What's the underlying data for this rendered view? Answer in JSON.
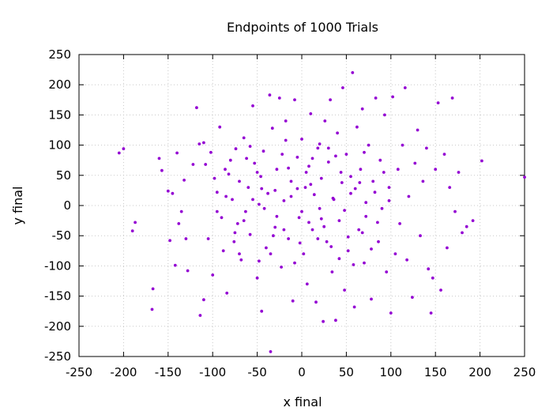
{
  "chart_data": {
    "type": "scatter",
    "title": "Endpoints of 1000 Trials",
    "xlabel": "x final",
    "ylabel": "y final",
    "xlim": [
      -250,
      250
    ],
    "ylim": [
      -250,
      250
    ],
    "xticks": [
      -250,
      -200,
      -150,
      -100,
      -50,
      0,
      50,
      100,
      150,
      200,
      250
    ],
    "yticks": [
      -250,
      -200,
      -150,
      -100,
      -50,
      0,
      50,
      100,
      150,
      200,
      250
    ],
    "grid": true,
    "point_color": "#9400D3",
    "series": [
      {
        "name": "endpoints",
        "points": [
          [
            -205,
            87
          ],
          [
            -200,
            94
          ],
          [
            -190,
            -42
          ],
          [
            -187,
            -28
          ],
          [
            -168,
            -172
          ],
          [
            -167,
            -138
          ],
          [
            -160,
            78
          ],
          [
            -157,
            58
          ],
          [
            -150,
            24
          ],
          [
            -148,
            -58
          ],
          [
            -145,
            20
          ],
          [
            -142,
            -99
          ],
          [
            -140,
            87
          ],
          [
            -138,
            -30
          ],
          [
            -135,
            -10
          ],
          [
            -132,
            42
          ],
          [
            -130,
            -55
          ],
          [
            -128,
            -108
          ],
          [
            -122,
            68
          ],
          [
            -118,
            162
          ],
          [
            -115,
            102
          ],
          [
            -114,
            -182
          ],
          [
            -110,
            104
          ],
          [
            -110,
            -156
          ],
          [
            -108,
            68
          ],
          [
            -105,
            -55
          ],
          [
            -102,
            88
          ],
          [
            -100,
            -115
          ],
          [
            -98,
            45
          ],
          [
            -95,
            22
          ],
          [
            -92,
            130
          ],
          [
            -90,
            -20
          ],
          [
            -88,
            -75
          ],
          [
            -86,
            60
          ],
          [
            -84,
            -145
          ],
          [
            -80,
            75
          ],
          [
            -78,
            10
          ],
          [
            -76,
            -60
          ],
          [
            -74,
            94
          ],
          [
            -72,
            -30
          ],
          [
            -70,
            40
          ],
          [
            -68,
            -90
          ],
          [
            -65,
            112
          ],
          [
            -63,
            -10
          ],
          [
            -60,
            30
          ],
          [
            -58,
            -48
          ],
          [
            -55,
            165
          ],
          [
            -53,
            70
          ],
          [
            -50,
            -120
          ],
          [
            -48,
            2
          ],
          [
            -46,
            48
          ],
          [
            -45,
            -175
          ],
          [
            -43,
            90
          ],
          [
            -40,
            -70
          ],
          [
            -38,
            20
          ],
          [
            -36,
            183
          ],
          [
            -35,
            -242
          ],
          [
            -33,
            128
          ],
          [
            -30,
            -36
          ],
          [
            -28,
            60
          ],
          [
            -25,
            178
          ],
          [
            -23,
            -102
          ],
          [
            -20,
            8
          ],
          [
            -18,
            140
          ],
          [
            -15,
            -55
          ],
          [
            -12,
            40
          ],
          [
            -10,
            -158
          ],
          [
            -8,
            175
          ],
          [
            -5,
            80
          ],
          [
            -3,
            -20
          ],
          [
            0,
            110
          ],
          [
            2,
            -80
          ],
          [
            4,
            30
          ],
          [
            6,
            -130
          ],
          [
            8,
            65
          ],
          [
            10,
            152
          ],
          [
            12,
            -40
          ],
          [
            14,
            18
          ],
          [
            16,
            -160
          ],
          [
            18,
            95
          ],
          [
            20,
            -5
          ],
          [
            22,
            45
          ],
          [
            24,
            -192
          ],
          [
            26,
            140
          ],
          [
            28,
            -60
          ],
          [
            30,
            72
          ],
          [
            32,
            175
          ],
          [
            34,
            -110
          ],
          [
            36,
            10
          ],
          [
            38,
            -190
          ],
          [
            40,
            120
          ],
          [
            42,
            -25
          ],
          [
            44,
            55
          ],
          [
            46,
            195
          ],
          [
            48,
            -140
          ],
          [
            50,
            85
          ],
          [
            52,
            -75
          ],
          [
            55,
            20
          ],
          [
            57,
            220
          ],
          [
            59,
            -168
          ],
          [
            62,
            130
          ],
          [
            64,
            -40
          ],
          [
            66,
            60
          ],
          [
            68,
            160
          ],
          [
            70,
            -95
          ],
          [
            72,
            5
          ],
          [
            75,
            100
          ],
          [
            78,
            -155
          ],
          [
            80,
            40
          ],
          [
            83,
            178
          ],
          [
            86,
            -60
          ],
          [
            88,
            75
          ],
          [
            90,
            -5
          ],
          [
            93,
            150
          ],
          [
            95,
            -110
          ],
          [
            98,
            30
          ],
          [
            100,
            -178
          ],
          [
            102,
            180
          ],
          [
            105,
            -80
          ],
          [
            108,
            60
          ],
          [
            110,
            -30
          ],
          [
            113,
            100
          ],
          [
            116,
            195
          ],
          [
            118,
            -90
          ],
          [
            120,
            15
          ],
          [
            124,
            -152
          ],
          [
            127,
            70
          ],
          [
            130,
            125
          ],
          [
            133,
            -50
          ],
          [
            136,
            40
          ],
          [
            140,
            95
          ],
          [
            142,
            -105
          ],
          [
            145,
            -178
          ],
          [
            147,
            -120
          ],
          [
            150,
            60
          ],
          [
            153,
            170
          ],
          [
            156,
            -140
          ],
          [
            160,
            85
          ],
          [
            163,
            -70
          ],
          [
            166,
            30
          ],
          [
            169,
            178
          ],
          [
            172,
            -10
          ],
          [
            176,
            55
          ],
          [
            180,
            -45
          ],
          [
            185,
            -35
          ],
          [
            192,
            -25
          ],
          [
            202,
            74
          ],
          [
            250,
            47
          ],
          [
            -55,
            10
          ],
          [
            -42,
            -5
          ],
          [
            -30,
            25
          ],
          [
            -20,
            -40
          ],
          [
            -12,
            15
          ],
          [
            0,
            -10
          ],
          [
            10,
            35
          ],
          [
            22,
            -22
          ],
          [
            35,
            12
          ],
          [
            48,
            -8
          ],
          [
            60,
            28
          ],
          [
            72,
            -18
          ],
          [
            -65,
            -25
          ],
          [
            -50,
            55
          ],
          [
            -35,
            -80
          ],
          [
            -22,
            85
          ],
          [
            -8,
            -95
          ],
          [
            5,
            55
          ],
          [
            18,
            -55
          ],
          [
            30,
            95
          ],
          [
            42,
            -88
          ],
          [
            55,
            48
          ],
          [
            68,
            -45
          ],
          [
            82,
            22
          ],
          [
            -85,
            15
          ],
          [
            -75,
            -45
          ],
          [
            -62,
            78
          ],
          [
            -48,
            -92
          ],
          [
            -28,
            -18
          ],
          [
            -15,
            62
          ],
          [
            -2,
            -62
          ],
          [
            12,
            78
          ],
          [
            25,
            -35
          ],
          [
            38,
            82
          ],
          [
            52,
            -52
          ],
          [
            65,
            38
          ],
          [
            78,
            -72
          ],
          [
            92,
            55
          ],
          [
            -95,
            -10
          ],
          [
            -82,
            52
          ],
          [
            -70,
            -80
          ],
          [
            -58,
            98
          ],
          [
            -45,
            28
          ],
          [
            -32,
            -50
          ],
          [
            -18,
            108
          ],
          [
            -5,
            28
          ],
          [
            8,
            -28
          ],
          [
            20,
            102
          ],
          [
            33,
            -68
          ],
          [
            45,
            38
          ],
          [
            58,
            -98
          ],
          [
            70,
            88
          ],
          [
            85,
            -28
          ],
          [
            98,
            8
          ]
        ]
      }
    ]
  }
}
